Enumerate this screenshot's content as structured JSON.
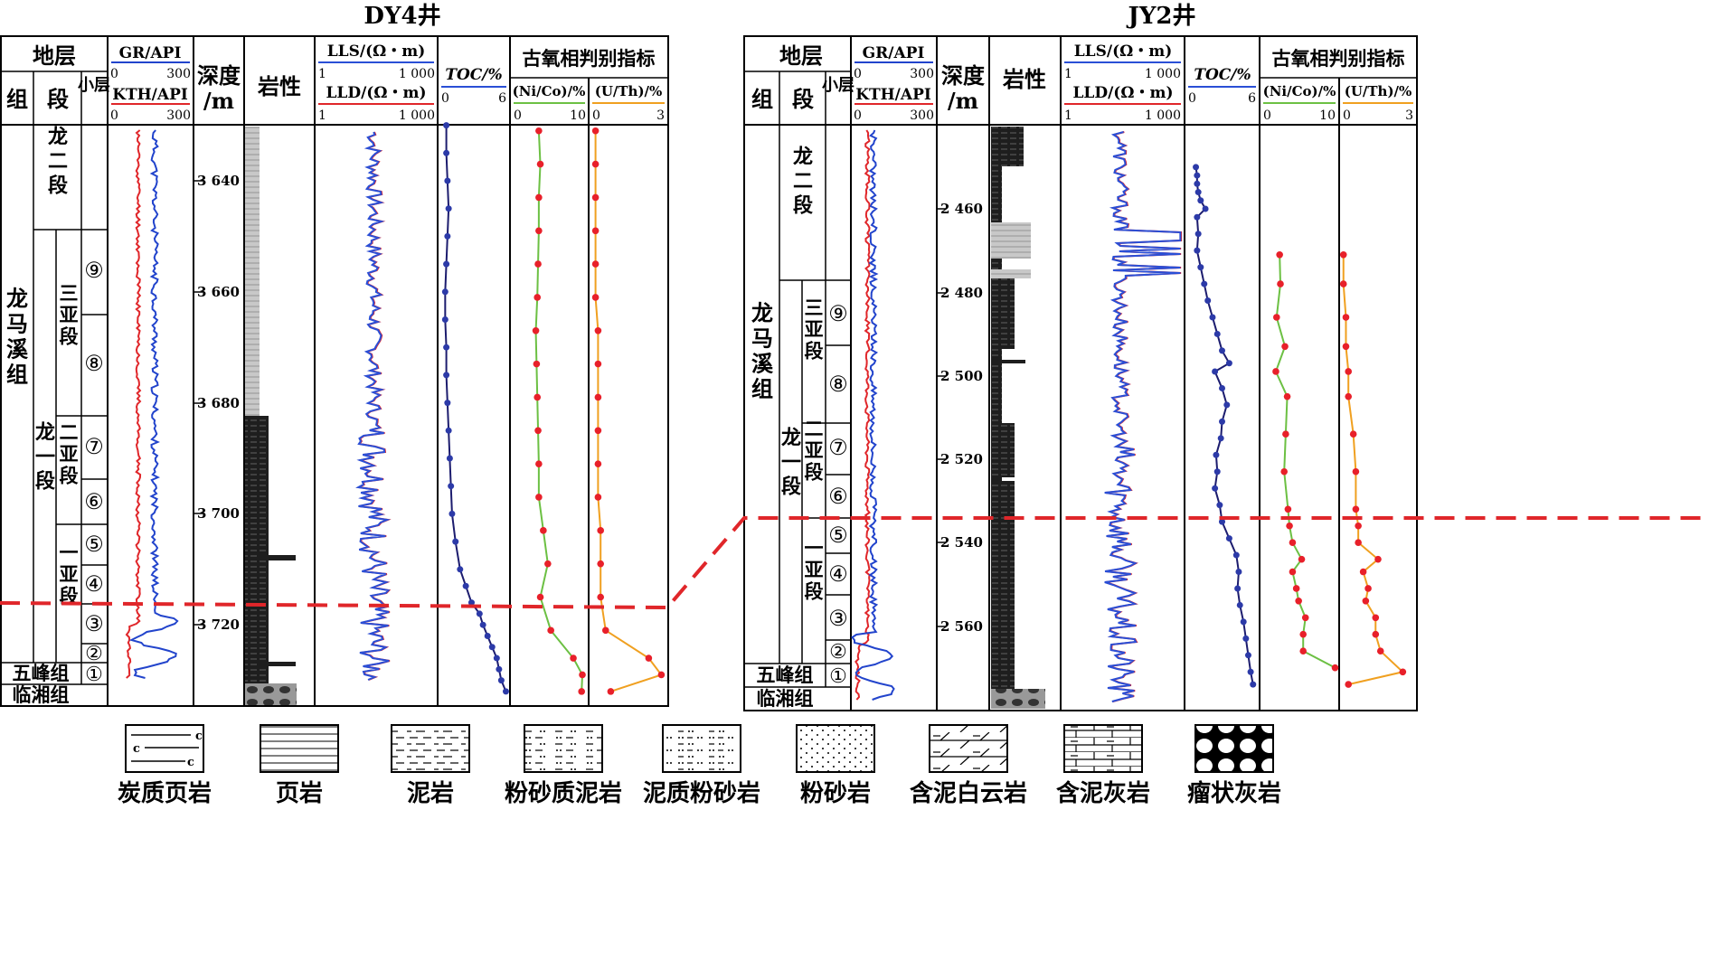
{
  "wells": [
    {
      "title": "DY4井",
      "header": {
        "strata": "地层",
        "formation": "组",
        "member": "段",
        "sublayer": "小层",
        "gr": "GR/API",
        "gr_min": "0",
        "gr_max": "300",
        "kth": "KTH/API",
        "kth_min": "0",
        "kth_max": "300",
        "depth": "深度/m",
        "lithology": "岩性",
        "lls": "LLS/(Ω・m)",
        "lls_min": "1",
        "lls_max": "1 000",
        "lld": "LLD/(Ω・m)",
        "lld_min": "1",
        "lld_max": "1 000",
        "toc": "TOC/%",
        "toc_min": "0",
        "toc_max": "6",
        "paleo": "古氧相判别指标",
        "nico": "(Ni/Co)/%",
        "nico_min": "0",
        "nico_max": "10",
        "uth": "(U/Th)/%",
        "uth_min": "0",
        "uth_max": "3"
      },
      "formations": [
        "龙马溪组",
        "五峰组",
        "临湘组"
      ],
      "members": [
        "龙二段",
        "龙一段"
      ],
      "submembers": [
        "三亚段",
        "二亚段",
        "一亚段"
      ],
      "layers": [
        "⑨",
        "⑧",
        "⑦",
        "⑥",
        "⑤",
        "④",
        "③",
        "②",
        "①"
      ],
      "depth_ticks": [
        "3 640",
        "3 660",
        "3 680",
        "3 700",
        "3 720"
      ],
      "chart_data": {
        "type": "line",
        "depth_range": [
          3630,
          3733
        ],
        "toc": {
          "depth": [
            3630,
            3635,
            3640,
            3645,
            3650,
            3655,
            3660,
            3665,
            3670,
            3675,
            3680,
            3685,
            3690,
            3695,
            3700,
            3705,
            3710,
            3713,
            3716,
            3718,
            3720,
            3722,
            3724,
            3726,
            3728,
            3730,
            3732
          ],
          "value": [
            0.6,
            0.6,
            0.7,
            0.8,
            0.7,
            0.6,
            0.5,
            0.5,
            0.6,
            0.6,
            0.7,
            0.8,
            0.9,
            1.0,
            1.1,
            1.4,
            1.8,
            2.3,
            2.8,
            3.5,
            3.8,
            4.2,
            4.6,
            5.0,
            5.2,
            5.4,
            5.8
          ]
        },
        "ni_co": {
          "depth": [
            3631,
            3637,
            3643,
            3649,
            3655,
            3661,
            3667,
            3673,
            3679,
            3685,
            3691,
            3697,
            3703,
            3709,
            3715,
            3721,
            3726,
            3729,
            3732
          ],
          "value": [
            3.6,
            3.8,
            3.6,
            3.6,
            3.5,
            3.4,
            3.2,
            3.3,
            3.4,
            3.5,
            3.6,
            3.6,
            4.2,
            4.8,
            3.8,
            5.2,
            8.2,
            9.4,
            9.3
          ]
        },
        "u_th": {
          "depth": [
            3631,
            3637,
            3643,
            3649,
            3655,
            3661,
            3667,
            3673,
            3679,
            3685,
            3691,
            3697,
            3703,
            3709,
            3715,
            3721,
            3726,
            3729,
            3732
          ],
          "value": [
            0.2,
            0.2,
            0.2,
            0.2,
            0.2,
            0.2,
            0.3,
            0.3,
            0.3,
            0.3,
            0.3,
            0.3,
            0.4,
            0.4,
            0.4,
            0.6,
            2.3,
            2.8,
            0.8
          ]
        }
      }
    },
    {
      "title": "JY2井",
      "header": {
        "strata": "地层",
        "formation": "组",
        "member": "段",
        "sublayer": "小层",
        "gr": "GR/API",
        "gr_min": "0",
        "gr_max": "300",
        "kth": "KTH/API",
        "kth_min": "0",
        "kth_max": "300",
        "depth": "深度/m",
        "lithology": "岩性",
        "lls": "LLS/(Ω・m)",
        "lls_min": "1",
        "lls_max": "1 000",
        "lld": "LLD/(Ω・m)",
        "lld_min": "1",
        "lld_max": "1 000",
        "toc": "TOC/%",
        "toc_min": "0",
        "toc_max": "6",
        "paleo": "古氧相判别指标",
        "nico": "(Ni/Co)/%",
        "nico_min": "0",
        "nico_max": "10",
        "uth": "(U/Th)/%",
        "uth_min": "0",
        "uth_max": "3"
      },
      "formations": [
        "龙马溪组",
        "五峰组",
        "临湘组"
      ],
      "members": [
        "龙二段",
        "龙一段"
      ],
      "submembers": [
        "三亚段",
        "二亚段",
        "一亚段"
      ],
      "layers": [
        "⑨",
        "⑧",
        "⑦",
        "⑥",
        "⑤",
        "④",
        "③",
        "②",
        "①"
      ],
      "depth_ticks": [
        "2 460",
        "2 480",
        "2 500",
        "2 520",
        "2 540",
        "2 560"
      ],
      "chart_data": {
        "type": "line",
        "depth_range": [
          2441,
          2578
        ],
        "toc": {
          "depth": [
            2450,
            2452,
            2454,
            2456,
            2458,
            2460,
            2462,
            2466,
            2470,
            2474,
            2478,
            2482,
            2486,
            2490,
            2494,
            2497,
            2499,
            2503,
            2507,
            2511,
            2515,
            2519,
            2523,
            2527,
            2531,
            2535,
            2539,
            2543,
            2547,
            2551,
            2555,
            2559,
            2563,
            2567,
            2571,
            2574
          ],
          "value": [
            0.8,
            0.9,
            0.9,
            1.0,
            1.2,
            1.6,
            0.9,
            1.0,
            0.9,
            1.2,
            1.5,
            1.8,
            2.2,
            2.6,
            3.0,
            3.6,
            2.4,
            3.0,
            3.4,
            3.0,
            2.9,
            2.5,
            2.6,
            2.4,
            2.8,
            3.0,
            3.6,
            4.2,
            4.4,
            4.3,
            4.5,
            4.8,
            5.0,
            5.2,
            5.4,
            5.6
          ]
        },
        "ni_co": {
          "depth": [
            2471,
            2478,
            2486,
            2493,
            2499,
            2505,
            2514,
            2523,
            2532,
            2536,
            2540,
            2544,
            2547,
            2551,
            2554,
            2558,
            2562,
            2566,
            2570
          ],
          "value": [
            2.4,
            2.5,
            2.0,
            3.1,
            1.9,
            3.4,
            3.2,
            3.0,
            3.5,
            3.7,
            4.1,
            5.3,
            4.1,
            4.6,
            4.9,
            5.8,
            5.5,
            5.5,
            9.7
          ]
        },
        "u_th": {
          "depth": [
            2471,
            2478,
            2486,
            2493,
            2499,
            2505,
            2514,
            2523,
            2532,
            2536,
            2540,
            2544,
            2547,
            2551,
            2554,
            2558,
            2562,
            2566,
            2571,
            2574
          ],
          "value": [
            0.1,
            0.1,
            0.2,
            0.2,
            0.3,
            0.3,
            0.5,
            0.6,
            0.6,
            0.7,
            0.7,
            1.5,
            0.9,
            1.1,
            1.0,
            1.4,
            1.4,
            1.6,
            2.5,
            0.3
          ]
        }
      }
    }
  ],
  "legend": [
    "炭质页岩",
    "页岩",
    "泥岩",
    "粉砂质泥岩",
    "泥质粉砂岩",
    "粉砂岩",
    "含泥白云岩",
    "含泥灰岩",
    "瘤状灰岩"
  ],
  "colors": {
    "gr": "#2244cc",
    "kth": "#e0262a",
    "lls": "#2a4fd6",
    "lld": "#e0262a",
    "toc_line": "#1c1c6e",
    "toc_dot": "#2c3aa8",
    "ni_co": "#6cc043",
    "u_th": "#f0a020",
    "dot": "#e8202a",
    "correlation": "#e0262a",
    "dark_shale": "#1a1a1a"
  }
}
